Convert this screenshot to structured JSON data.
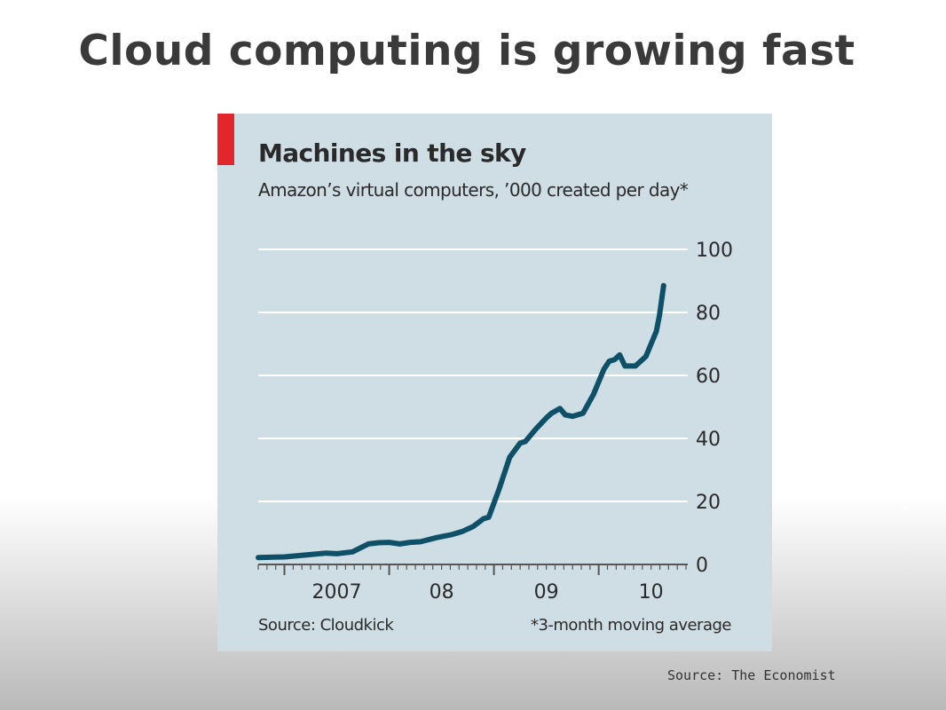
{
  "slide": {
    "title": "Cloud computing is growing fast",
    "source": "Source: The Economist"
  },
  "colors": {
    "panel_background": "#cfdde5",
    "accent_tag": "#e3262b",
    "line": "#0e5068",
    "gridline": "#ffffff"
  },
  "chart_data": {
    "type": "line",
    "title": "Machines in the sky",
    "subtitle": "Amazon’s virtual computers, ’000 created per day*",
    "footnote_left": "Source: Cloudkick",
    "footnote_right": "*3-month moving average",
    "ylim": [
      0,
      100
    ],
    "y_ticks": [
      0,
      20,
      40,
      60,
      80,
      100
    ],
    "y_tick_labels": [
      "0",
      "20",
      "40",
      "60",
      "80",
      "100"
    ],
    "y_axis_position": "right",
    "grid": true,
    "xlim": [
      2006.75,
      2010.85
    ],
    "x_ticks": [
      2007,
      2008,
      2009,
      2010
    ],
    "x_tick_labels": [
      "2007",
      "08",
      "09",
      "10"
    ],
    "series": [
      {
        "values_x": [
          2006.75,
          2006.9,
          2007.0,
          2007.2,
          2007.4,
          2007.5,
          2007.65,
          2007.8,
          2007.9,
          2008.0,
          2008.1,
          2008.2,
          2008.3,
          2008.45,
          2008.6,
          2008.7,
          2008.8,
          2008.9,
          2008.95,
          2009.05,
          2009.15,
          2009.25,
          2009.3,
          2009.4,
          2009.5,
          2009.55,
          2009.63,
          2009.68,
          2009.75,
          2009.8,
          2009.85,
          2009.95,
          2010.05,
          2010.1,
          2010.15,
          2010.2,
          2010.25,
          2010.35,
          2010.45,
          2010.5,
          2010.55,
          2010.58,
          2010.62
        ],
        "values_y": [
          2.2,
          2.3,
          2.4,
          3.0,
          3.6,
          3.4,
          4.0,
          6.5,
          6.9,
          7.0,
          6.5,
          7.0,
          7.2,
          8.5,
          9.5,
          10.5,
          12.0,
          14.5,
          15.0,
          24.0,
          34.0,
          38.5,
          39.0,
          43.0,
          46.5,
          48.0,
          49.5,
          47.5,
          47.0,
          47.5,
          48.0,
          54.0,
          62.0,
          64.5,
          65.0,
          66.5,
          63.0,
          63.0,
          66.0,
          70.0,
          74.0,
          79.0,
          88.5
        ]
      }
    ]
  }
}
